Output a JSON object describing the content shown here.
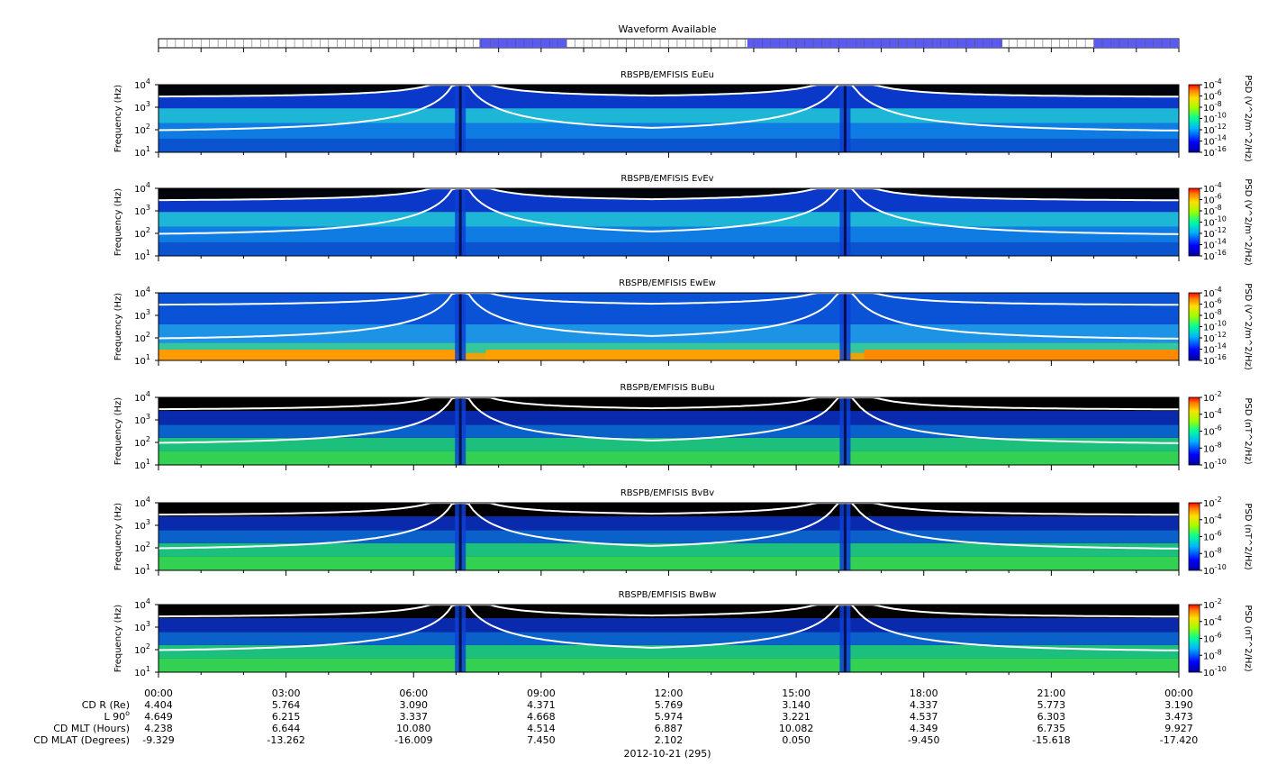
{
  "waveform": {
    "title": "Waveform Available",
    "available_ranges_hours": [
      [
        7.55,
        9.6
      ],
      [
        13.85,
        19.85
      ],
      [
        22.0,
        24.0
      ]
    ],
    "fill_color": "#5a5af0"
  },
  "chart_data": [
    {
      "type": "heatmap",
      "title": "RBSPB/EMFISIS  EuEu",
      "ylabel": "Frequency (Hz)",
      "yscale": "log",
      "ylim": [
        10,
        10000
      ],
      "yticks": [
        {
          "base": "10",
          "exp": "1"
        },
        {
          "base": "10",
          "exp": "2"
        },
        {
          "base": "10",
          "exp": "3"
        },
        {
          "base": "10",
          "exp": "4"
        }
      ],
      "colorbar_label": "PSD (V^2/m^2/Hz)",
      "colorbar_ticks": [
        {
          "base": "10",
          "exp": "-4"
        },
        {
          "base": "10",
          "exp": "-6"
        },
        {
          "base": "10",
          "exp": "-8"
        },
        {
          "base": "10",
          "exp": "-10"
        },
        {
          "base": "10",
          "exp": "-12"
        },
        {
          "base": "10",
          "exp": "-14"
        },
        {
          "base": "10",
          "exp": "-16"
        }
      ],
      "field": "E"
    },
    {
      "type": "heatmap",
      "title": "RBSPB/EMFISIS  EvEv",
      "ylabel": "Frequency (Hz)",
      "yscale": "log",
      "ylim": [
        10,
        10000
      ],
      "yticks": [
        {
          "base": "10",
          "exp": "1"
        },
        {
          "base": "10",
          "exp": "2"
        },
        {
          "base": "10",
          "exp": "3"
        },
        {
          "base": "10",
          "exp": "4"
        }
      ],
      "colorbar_label": "PSD (V^2/m^2/Hz)",
      "colorbar_ticks": [
        {
          "base": "10",
          "exp": "-4"
        },
        {
          "base": "10",
          "exp": "-6"
        },
        {
          "base": "10",
          "exp": "-8"
        },
        {
          "base": "10",
          "exp": "-10"
        },
        {
          "base": "10",
          "exp": "-12"
        },
        {
          "base": "10",
          "exp": "-14"
        },
        {
          "base": "10",
          "exp": "-16"
        }
      ],
      "field": "E"
    },
    {
      "type": "heatmap",
      "title": "RBSPB/EMFISIS  EwEw",
      "ylabel": "Frequency (Hz)",
      "yscale": "log",
      "ylim": [
        10,
        10000
      ],
      "yticks": [
        {
          "base": "10",
          "exp": "1"
        },
        {
          "base": "10",
          "exp": "2"
        },
        {
          "base": "10",
          "exp": "3"
        },
        {
          "base": "10",
          "exp": "4"
        }
      ],
      "colorbar_label": "PSD (V^2/m^2/Hz)",
      "colorbar_ticks": [
        {
          "base": "10",
          "exp": "-4"
        },
        {
          "base": "10",
          "exp": "-6"
        },
        {
          "base": "10",
          "exp": "-8"
        },
        {
          "base": "10",
          "exp": "-10"
        },
        {
          "base": "10",
          "exp": "-12"
        },
        {
          "base": "10",
          "exp": "-14"
        },
        {
          "base": "10",
          "exp": "-16"
        }
      ],
      "field": "Ew"
    },
    {
      "type": "heatmap",
      "title": "RBSPB/EMFISIS  BuBu",
      "ylabel": "Frequency (Hz)",
      "yscale": "log",
      "ylim": [
        10,
        10000
      ],
      "yticks": [
        {
          "base": "10",
          "exp": "1"
        },
        {
          "base": "10",
          "exp": "2"
        },
        {
          "base": "10",
          "exp": "3"
        },
        {
          "base": "10",
          "exp": "4"
        }
      ],
      "colorbar_label": "PSD (nT^2/Hz)",
      "colorbar_ticks": [
        {
          "base": "10",
          "exp": "-2"
        },
        {
          "base": "10",
          "exp": "-4"
        },
        {
          "base": "10",
          "exp": "-6"
        },
        {
          "base": "10",
          "exp": "-8"
        },
        {
          "base": "10",
          "exp": "-10"
        }
      ],
      "field": "B"
    },
    {
      "type": "heatmap",
      "title": "RBSPB/EMFISIS  BvBv",
      "ylabel": "Frequency (Hz)",
      "yscale": "log",
      "ylim": [
        10,
        10000
      ],
      "yticks": [
        {
          "base": "10",
          "exp": "1"
        },
        {
          "base": "10",
          "exp": "2"
        },
        {
          "base": "10",
          "exp": "3"
        },
        {
          "base": "10",
          "exp": "4"
        }
      ],
      "colorbar_label": "PSD (nT^2/Hz)",
      "colorbar_ticks": [
        {
          "base": "10",
          "exp": "-2"
        },
        {
          "base": "10",
          "exp": "-4"
        },
        {
          "base": "10",
          "exp": "-6"
        },
        {
          "base": "10",
          "exp": "-8"
        },
        {
          "base": "10",
          "exp": "-10"
        }
      ],
      "field": "B"
    },
    {
      "type": "heatmap",
      "title": "RBSPB/EMFISIS  BwBw",
      "ylabel": "Frequency (Hz)",
      "yscale": "log",
      "ylim": [
        10,
        10000
      ],
      "yticks": [
        {
          "base": "10",
          "exp": "1"
        },
        {
          "base": "10",
          "exp": "2"
        },
        {
          "base": "10",
          "exp": "3"
        },
        {
          "base": "10",
          "exp": "4"
        }
      ],
      "colorbar_label": "PSD (nT^2/Hz)",
      "colorbar_ticks": [
        {
          "base": "10",
          "exp": "-2"
        },
        {
          "base": "10",
          "exp": "-4"
        },
        {
          "base": "10",
          "exp": "-6"
        },
        {
          "base": "10",
          "exp": "-8"
        },
        {
          "base": "10",
          "exp": "-10"
        }
      ],
      "field": "B"
    }
  ],
  "time_axis": {
    "labels": [
      "00:00",
      "03:00",
      "06:00",
      "09:00",
      "12:00",
      "15:00",
      "18:00",
      "21:00",
      "00:00"
    ],
    "date": "2012-10-21 (295)",
    "xlim_hours": [
      0,
      24
    ]
  },
  "ephemeris": {
    "row_labels": [
      "CD R (Re)",
      "L 90",
      "CD MLT (Hours)",
      "CD MLAT (Degrees)"
    ],
    "l_superscript": "o",
    "rows": [
      [
        "4.404",
        "5.764",
        "3.090",
        "4.371",
        "5.769",
        "3.140",
        "4.337",
        "5.773",
        "3.190"
      ],
      [
        "4.649",
        "6.215",
        "3.337",
        "4.668",
        "5.974",
        "3.221",
        "4.537",
        "6.303",
        "3.473"
      ],
      [
        "4.238",
        "6.644",
        "10.080",
        "4.514",
        "6.887",
        "10.082",
        "4.349",
        "6.735",
        "9.927"
      ],
      [
        "-9.329",
        "-13.262",
        "-16.009",
        "7.450",
        "2.102",
        "0.050",
        "-9.450",
        "-15.618",
        "-17.420"
      ]
    ]
  }
}
